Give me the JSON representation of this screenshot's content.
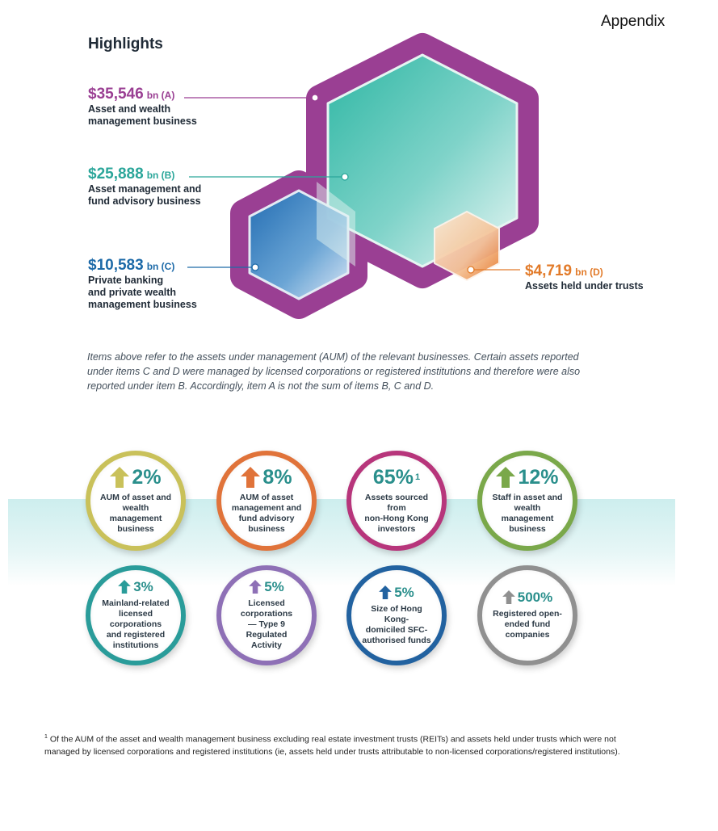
{
  "header": {
    "section": "Appendix",
    "title": "Highlights"
  },
  "highlights": [
    {
      "value": "$35,546",
      "unit": "bn (A)",
      "label": "Asset and wealth\nmanagement business",
      "color": "#9a3f93"
    },
    {
      "value": "$25,888",
      "unit": "bn (B)",
      "label": "Asset management and\nfund advisory business",
      "color": "#2ba69a"
    },
    {
      "value": "$10,583",
      "unit": "bn (C)",
      "label": "Private banking\nand private wealth\nmanagement business",
      "color": "#1d6aa8"
    },
    {
      "value": "$4,719",
      "unit": "bn (D)",
      "label": "Assets held under trusts",
      "color": "#e27b2a"
    }
  ],
  "note": "Items above refer to the assets under management (AUM) of the relevant businesses. Certain assets reported under items C and D were managed by licensed corporations or registered institutions and therefore were also reported under item B. Accordingly, item A is not the sum of items B, C and D.",
  "metrics_row1": [
    {
      "pct": "2%",
      "arrow": "up",
      "label": "AUM of asset and\nwealth management\nbusiness",
      "color": "#c9c15a"
    },
    {
      "pct": "8%",
      "arrow": "up",
      "label": "AUM of asset\nmanagement and\nfund advisory\nbusiness",
      "color": "#e0733a"
    },
    {
      "pct": "65%",
      "sup": "1",
      "label": "Assets sourced from\nnon-Hong Kong\ninvestors",
      "color": "#b7357b"
    },
    {
      "pct": "12%",
      "arrow": "up",
      "label": "Staff in asset and\nwealth management\nbusiness",
      "color": "#7aa84a"
    }
  ],
  "metrics_row2": [
    {
      "pct": "3%",
      "arrow": "up",
      "label": "Mainland-related\nlicensed corporations\nand registered\ninstitutions",
      "color": "#2a9c9a"
    },
    {
      "pct": "5%",
      "arrow": "up",
      "label": "Licensed corporations\n— Type 9 Regulated\nActivity",
      "color": "#8e70b6"
    },
    {
      "pct": "5%",
      "arrow": "up",
      "label": "Size of Hong Kong-\ndomiciled SFC-\nauthorised funds",
      "color": "#2262a0"
    },
    {
      "pct": "500%",
      "arrow": "up",
      "label": "Registered open-\nended fund\ncompanies",
      "color": "#909090"
    }
  ],
  "footnote": {
    "marker": "1",
    "text": "Of the AUM of the asset and wealth management business excluding real estate investment trusts (REITs) and assets held under trusts which were not managed by licensed corporations and registered institutions (ie, assets held under trusts attributable to non-licensed corporations/registered institutions)."
  }
}
